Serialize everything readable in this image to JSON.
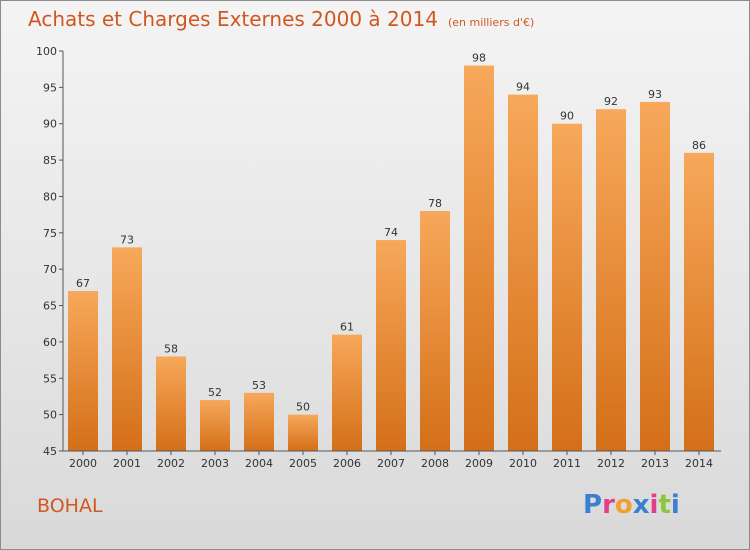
{
  "header": {
    "title": "Achats et Charges Externes 2000 à 2014",
    "unit": "(en milliers d'€)"
  },
  "place": "BOHAL",
  "logo": "Proxiti",
  "colors": {
    "accent": "#d05820",
    "bar_light": "#f6a65a",
    "bar_dark": "#d9731c",
    "axis": "#333333"
  },
  "chart_data": {
    "type": "bar",
    "title": "Achats et Charges Externes 2000 à 2014",
    "unit": "(en milliers d'€)",
    "categories": [
      "2000",
      "2001",
      "2002",
      "2003",
      "2004",
      "2005",
      "2006",
      "2007",
      "2008",
      "2009",
      "2010",
      "2011",
      "2012",
      "2013",
      "2014"
    ],
    "values": [
      67,
      73,
      58,
      52,
      53,
      50,
      61,
      74,
      78,
      98,
      94,
      90,
      92,
      93,
      86
    ],
    "ylim": [
      45,
      100
    ],
    "yticks": [
      45,
      50,
      55,
      60,
      65,
      70,
      75,
      80,
      85,
      90,
      95,
      100
    ],
    "grid": false,
    "data_labels": true
  }
}
